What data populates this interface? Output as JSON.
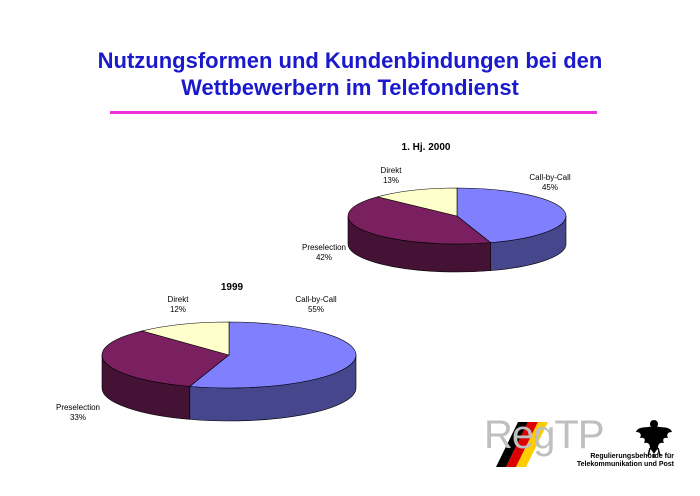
{
  "title": {
    "line1": "Nutzungsformen und Kundenbindungen bei den",
    "line2": "Wettbewerbern im Telefondienst"
  },
  "colors": {
    "title": "#1a1acc",
    "rule": "#ee33dd",
    "call_by_call": "#8080ff",
    "preselection": "#7a2060",
    "direkt": "#ffffcc"
  },
  "chart_data": [
    {
      "type": "pie",
      "title": "1. Hj. 2000",
      "slices": [
        {
          "label": "Call-by-Call",
          "value": 45,
          "value_label": "45%"
        },
        {
          "label": "Preselection",
          "value": 42,
          "value_label": "42%"
        },
        {
          "label": "Direkt",
          "value": 13,
          "value_label": "13%"
        }
      ]
    },
    {
      "type": "pie",
      "title": "1999",
      "slices": [
        {
          "label": "Call-by-Call",
          "value": 55,
          "value_label": "55%"
        },
        {
          "label": "Preselection",
          "value": 33,
          "value_label": "33%"
        },
        {
          "label": "Direkt",
          "value": 12,
          "value_label": "12%"
        }
      ]
    }
  ],
  "logo": {
    "text": "RegTP",
    "sub_line1": "Regulierungsbehörde für",
    "sub_line2": "Telekommunikation und Post"
  }
}
